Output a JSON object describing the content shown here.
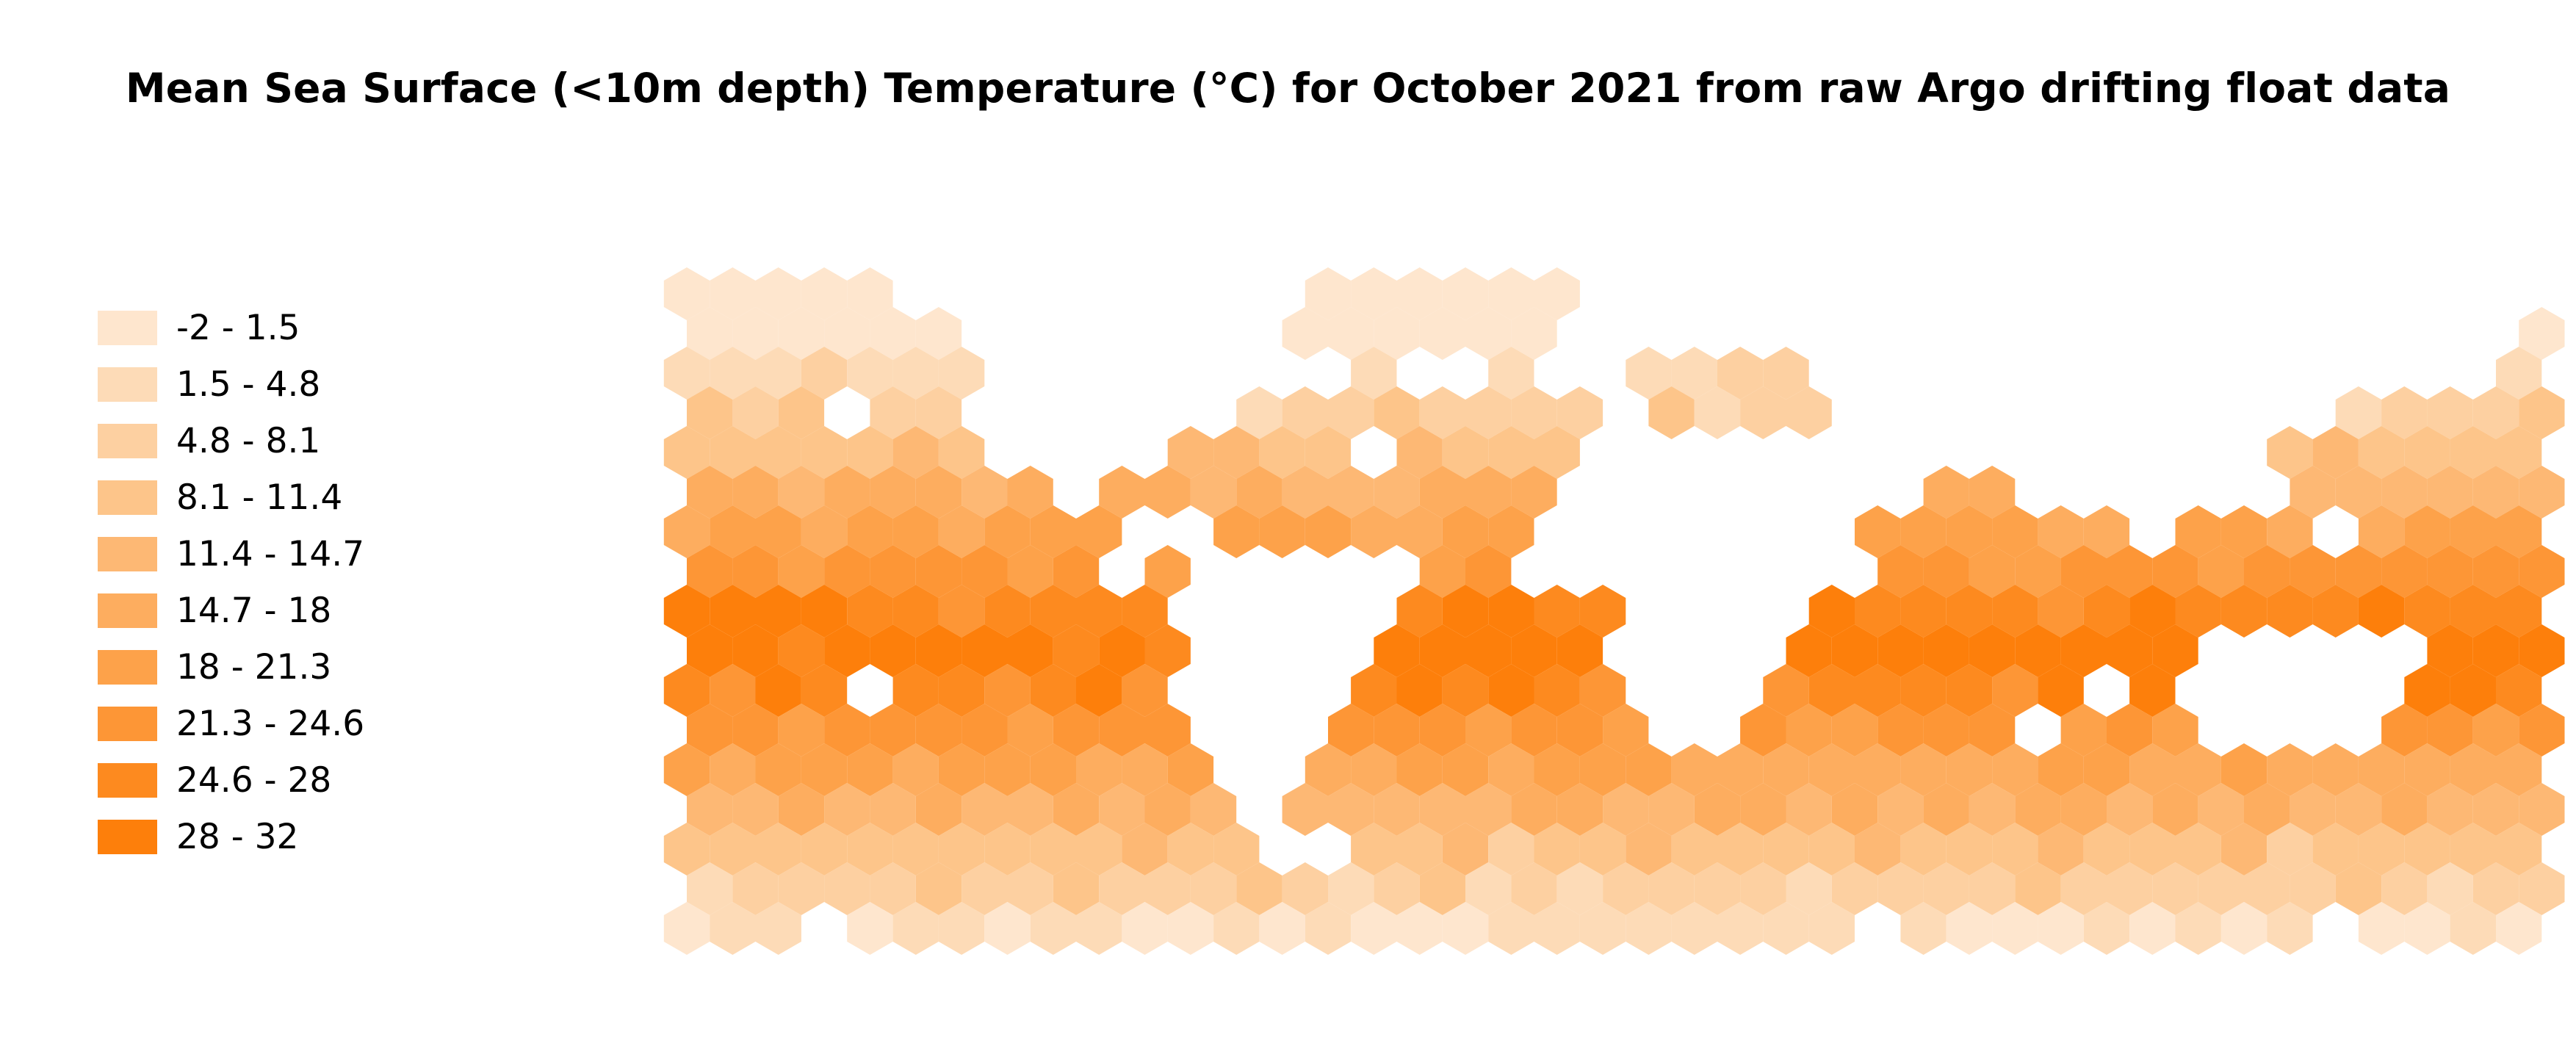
{
  "title": "Mean Sea Surface (<10m depth) Temperature (°C) for October 2021 from raw Argo drifting float data",
  "legend": [
    {
      "label": "-2 - 1.5",
      "color": "#fee6ce"
    },
    {
      "label": "1.5 - 4.8",
      "color": "#fddbb7"
    },
    {
      "label": "4.8 - 8.1",
      "color": "#fdd0a1"
    },
    {
      "label": "8.1 - 11.4",
      "color": "#fdc58a"
    },
    {
      "label": "11.4 - 14.7",
      "color": "#fdb874"
    },
    {
      "label": "14.7 - 18",
      "color": "#fdad5f"
    },
    {
      "label": "18 - 21.3",
      "color": "#fda24a"
    },
    {
      "label": "21.3 - 24.6",
      "color": "#fd9636"
    },
    {
      "label": "24.6 - 28",
      "color": "#fd8a1f"
    },
    {
      "label": "28 - 32",
      "color": "#fd7f0b"
    }
  ]
}
